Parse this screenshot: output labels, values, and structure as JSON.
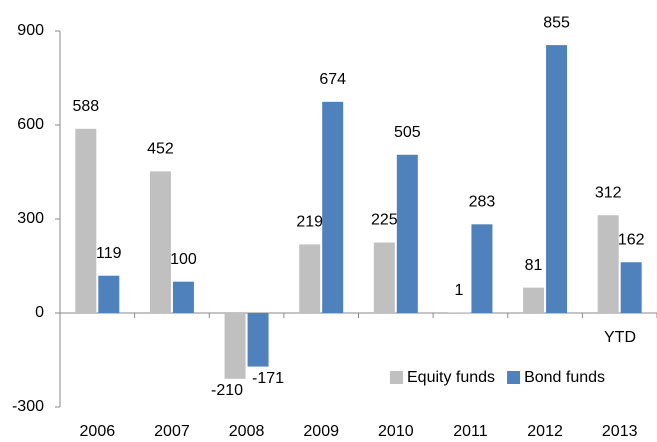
{
  "chart_data": {
    "type": "bar",
    "categories": [
      "2006",
      "2007",
      "2008",
      "2009",
      "2010",
      "2011",
      "2012",
      "2013"
    ],
    "series": [
      {
        "name": "Equity funds",
        "color": "#c0c0c0",
        "values": [
          588,
          452,
          -210,
          219,
          225,
          1,
          81,
          312
        ]
      },
      {
        "name": "Bond funds",
        "color": "#4f81bd",
        "values": [
          119,
          100,
          -171,
          674,
          505,
          283,
          855,
          162
        ]
      }
    ],
    "ylim": [
      -300,
      900
    ],
    "yticks": [
      -300,
      0,
      300,
      600,
      900
    ],
    "grid": false,
    "legend": "lower right",
    "annotation": "YTD"
  }
}
